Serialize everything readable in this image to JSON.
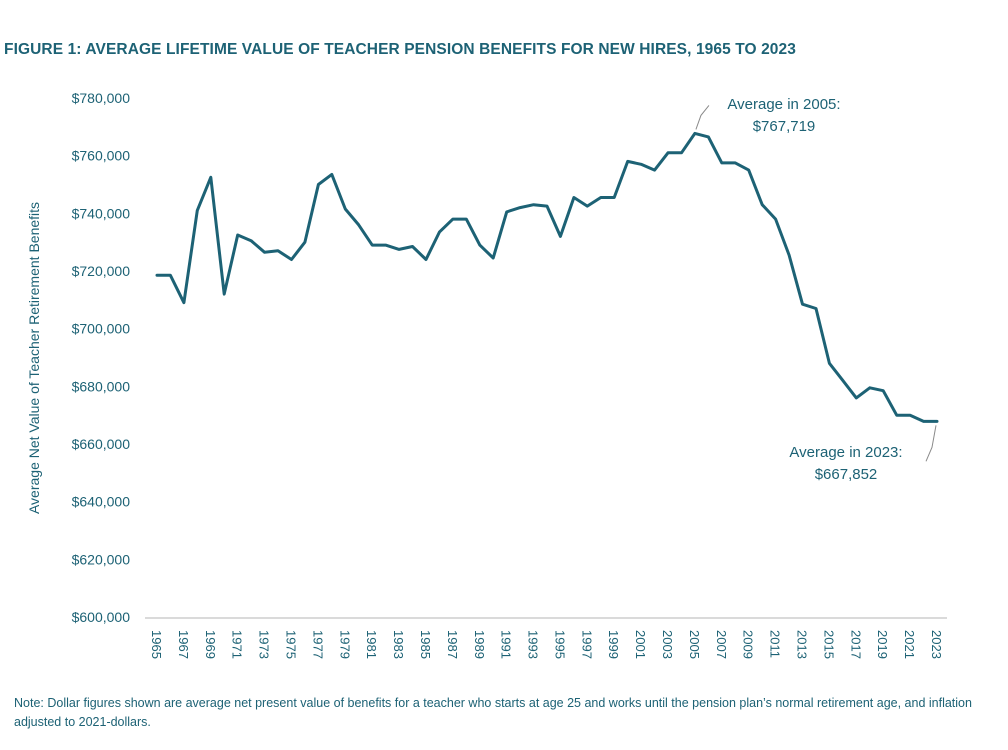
{
  "figure": {
    "title": "FIGURE 1: AVERAGE LIFETIME VALUE OF TEACHER PENSION BENEFITS FOR NEW HIRES, 1965 TO 2023",
    "note": "Note: Dollar figures shown are average net present value of benefits for a teacher who starts at age 25 and works until the pension plan’s normal retirement age, and inflation adjusted to 2021-dollars."
  },
  "colors": {
    "accent": "#1d6275",
    "axis": "#c4c4c4"
  },
  "chart_data": {
    "type": "line",
    "title": "FIGURE 1: AVERAGE LIFETIME VALUE OF TEACHER PENSION BENEFITS FOR NEW HIRES, 1965 TO 2023",
    "xlabel": "",
    "ylabel": "Average Net Value of Teacher Retirement Benefits",
    "ylim": [
      600000,
      780000
    ],
    "y_ticks": [
      600000,
      620000,
      640000,
      660000,
      680000,
      700000,
      720000,
      740000,
      760000,
      780000
    ],
    "y_tick_labels": [
      "$600,000",
      "$620,000",
      "$640,000",
      "$660,000",
      "$680,000",
      "$700,000",
      "$720,000",
      "$740,000",
      "$760,000",
      "$780,000"
    ],
    "x_tick_labels": [
      "1965",
      "1967",
      "1969",
      "1971",
      "1973",
      "1975",
      "1977",
      "1979",
      "1981",
      "1983",
      "1985",
      "1987",
      "1989",
      "1991",
      "1993",
      "1995",
      "1997",
      "1999",
      "2001",
      "2003",
      "2005",
      "2007",
      "2009",
      "2011",
      "2013",
      "2015",
      "2017",
      "2019",
      "2021",
      "2023"
    ],
    "grid": false,
    "x": [
      1965,
      1966,
      1967,
      1968,
      1969,
      1970,
      1971,
      1972,
      1973,
      1974,
      1975,
      1976,
      1977,
      1978,
      1979,
      1980,
      1981,
      1982,
      1983,
      1984,
      1985,
      1986,
      1987,
      1988,
      1989,
      1990,
      1991,
      1992,
      1993,
      1994,
      1995,
      1996,
      1997,
      1998,
      1999,
      2000,
      2001,
      2002,
      2003,
      2004,
      2005,
      2006,
      2007,
      2008,
      2009,
      2010,
      2011,
      2012,
      2013,
      2014,
      2015,
      2016,
      2017,
      2018,
      2019,
      2020,
      2021,
      2022,
      2023
    ],
    "series": [
      {
        "values": [
          718500,
          718500,
          709000,
          741000,
          752500,
          712000,
          732500,
          730500,
          726500,
          727000,
          724000,
          730000,
          750000,
          753500,
          741500,
          736000,
          729000,
          729000,
          727500,
          728500,
          724000,
          733500,
          738000,
          738000,
          729000,
          724500,
          740500,
          742000,
          743000,
          742500,
          732000,
          745500,
          742500,
          745500,
          745500,
          758000,
          757000,
          755000,
          761000,
          761000,
          767719,
          766500,
          757500,
          757500,
          755000,
          743000,
          738000,
          725500,
          708500,
          707000,
          688000,
          682000,
          676000,
          679500,
          678500,
          670000,
          670000,
          667852,
          667852
        ]
      }
    ],
    "annotations": [
      {
        "line1": "Average in 2005:",
        "line2": "$767,719",
        "x": 2005,
        "y": 767719
      },
      {
        "line1": "Average in 2023:",
        "line2": "$667,852",
        "x": 2023,
        "y": 667852
      }
    ]
  }
}
